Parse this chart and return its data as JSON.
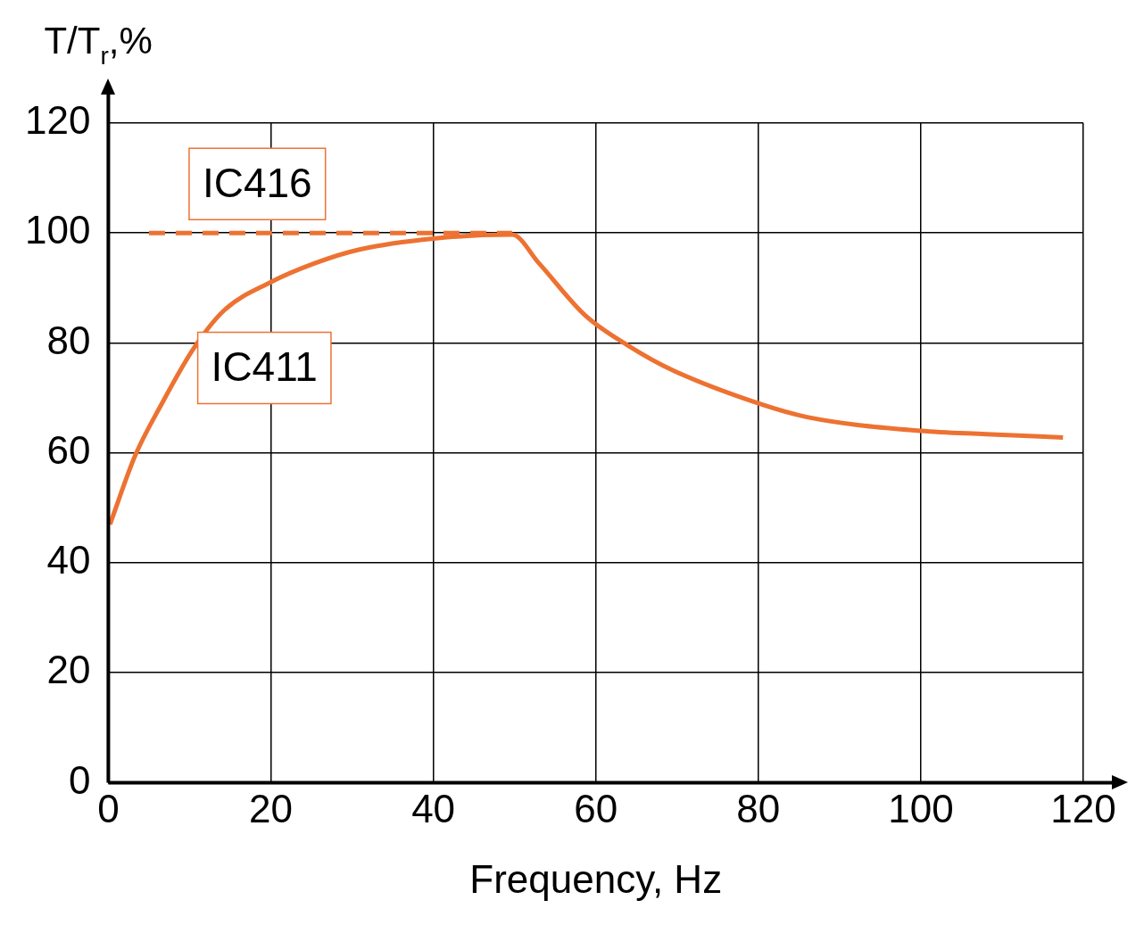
{
  "chart_data": {
    "type": "line",
    "xlabel": "Frequency, Hz",
    "ylabel": "T/T$_{r}$,%",
    "xlim": [
      0,
      120
    ],
    "xticks": [
      0,
      20,
      40,
      60,
      80,
      100,
      120
    ],
    "ylim": [
      0,
      120
    ],
    "yticks": [
      0,
      20,
      40,
      60,
      80,
      100,
      120
    ],
    "grid": true,
    "legend": false,
    "marker": "none",
    "series": [
      {
        "name": "IC416",
        "color": "#ed7232",
        "line_style": "dashed",
        "x": [
          5,
          49.7
        ],
        "values": [
          100,
          100
        ]
      },
      {
        "name": "IC411",
        "color": "#ed7232",
        "line_style": "solid",
        "x": [
          0.2,
          3.3,
          6.6,
          10.5,
          14.3,
          19.9,
          25.4,
          30.9,
          40,
          49.7,
          53,
          58.7,
          64,
          69.5,
          80,
          86,
          100,
          108,
          117.5
        ],
        "values": [
          47,
          59.5,
          69,
          79,
          86,
          91,
          94.5,
          97,
          99,
          99.7,
          94.5,
          85,
          79.5,
          75,
          69,
          66.5,
          64,
          63.4,
          62.8
        ]
      }
    ]
  }
}
